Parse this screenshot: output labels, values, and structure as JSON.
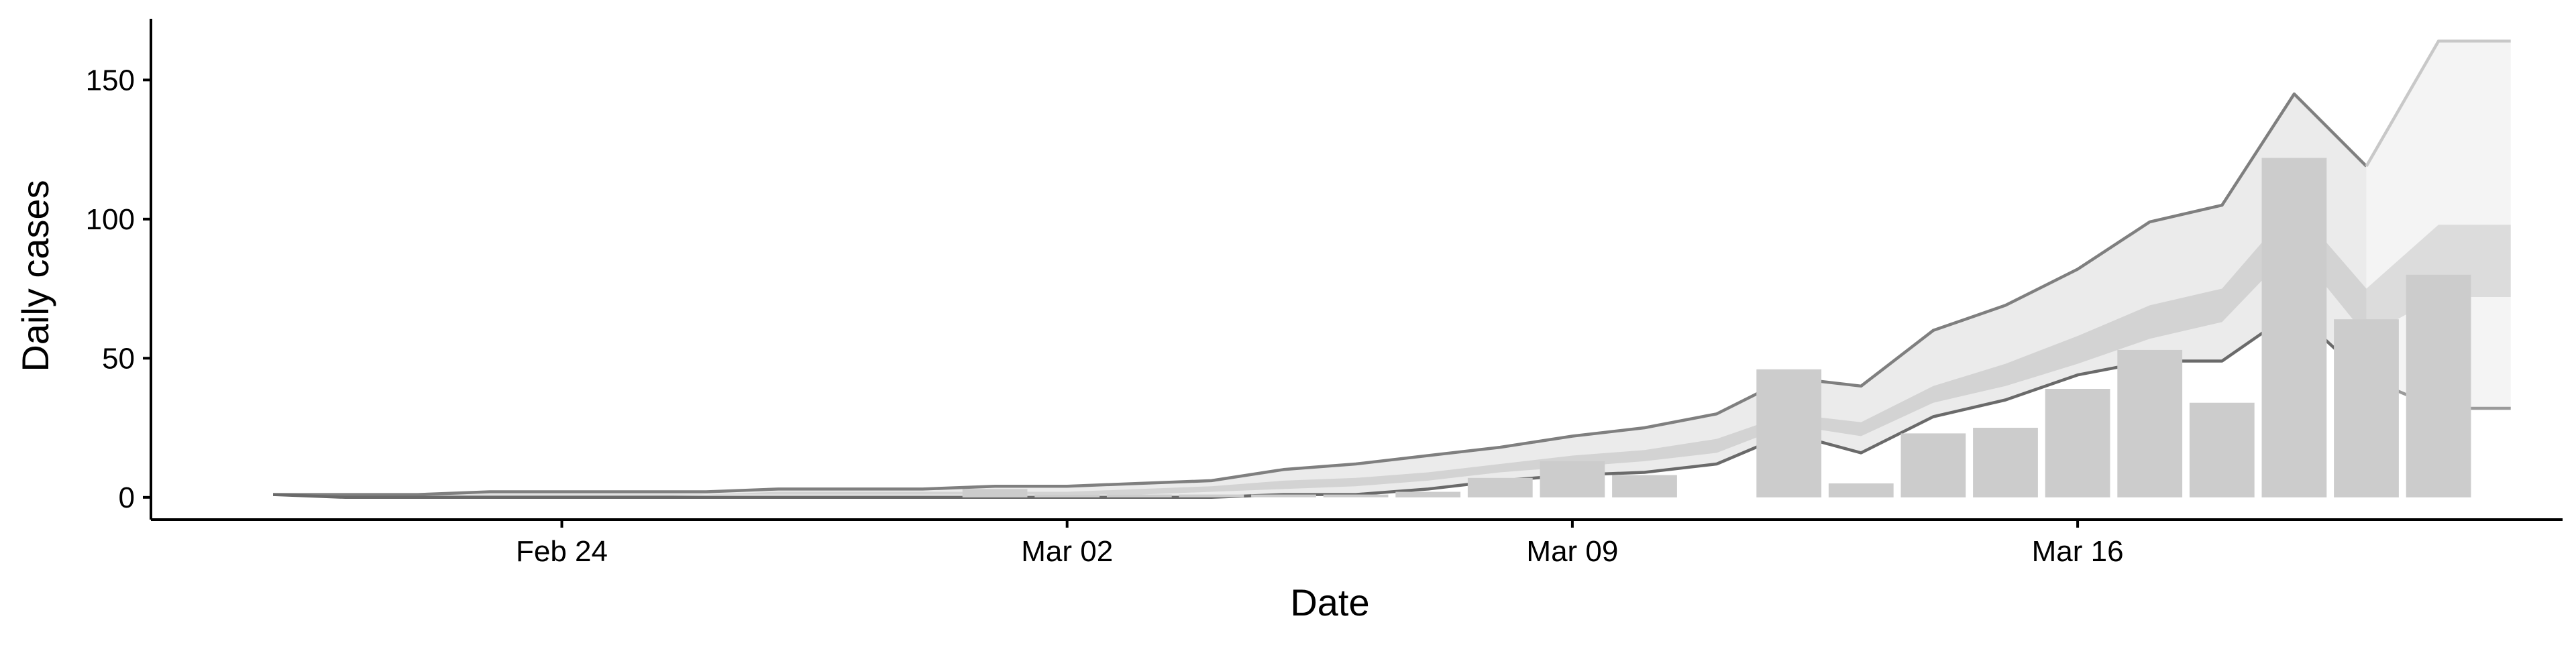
{
  "chart_data": {
    "type": "bar",
    "title": "",
    "xlabel": "Date",
    "ylabel": "Daily cases",
    "ylim": [
      -8,
      172
    ],
    "x_tick_labels": [
      {
        "date": "2020-02-24",
        "label": "Feb 24"
      },
      {
        "date": "2020-03-02",
        "label": "Mar 02"
      },
      {
        "date": "2020-03-09",
        "label": "Mar 09"
      },
      {
        "date": "2020-03-16",
        "label": "Mar 16"
      }
    ],
    "y_ticks": [
      0,
      50,
      100,
      150
    ],
    "grid": false,
    "legend": "none",
    "colors": {
      "bars": "#cccccc",
      "band_outer": "#ebebeb",
      "band_inner": "#d3d3d3",
      "band_outer_forecast": "#f4f4f4",
      "band_inner_forecast": "#dcdcdc",
      "line_upper": "#7f7f7f",
      "line_lower": "#6a6a6a",
      "line_upper_forecast": "#c8c8c8",
      "line_lower_forecast": "#9a9a9a",
      "axis": "#000000"
    },
    "observed_cases": {
      "dates": [
        "2020-03-01",
        "2020-03-02",
        "2020-03-03",
        "2020-03-04",
        "2020-03-05",
        "2020-03-06",
        "2020-03-07",
        "2020-03-08",
        "2020-03-09",
        "2020-03-10",
        "2020-03-11",
        "2020-03-12",
        "2020-03-13",
        "2020-03-14",
        "2020-03-15",
        "2020-03-16",
        "2020-03-17",
        "2020-03-18",
        "2020-03-19",
        "2020-03-20",
        "2020-03-21",
        "2020-03-22"
      ],
      "values": [
        3,
        1,
        1,
        1,
        1,
        1,
        2,
        7,
        13,
        8,
        0,
        46,
        5,
        23,
        25,
        39,
        53,
        34,
        122,
        64,
        80,
        0
      ]
    },
    "forecast_start": "2020-03-21",
    "ribbons": {
      "dates": [
        "2020-02-20",
        "2020-02-21",
        "2020-02-22",
        "2020-02-23",
        "2020-02-24",
        "2020-02-25",
        "2020-02-26",
        "2020-02-27",
        "2020-02-28",
        "2020-02-29",
        "2020-03-01",
        "2020-03-02",
        "2020-03-03",
        "2020-03-04",
        "2020-03-05",
        "2020-03-06",
        "2020-03-07",
        "2020-03-08",
        "2020-03-09",
        "2020-03-10",
        "2020-03-11",
        "2020-03-12",
        "2020-03-13",
        "2020-03-14",
        "2020-03-15",
        "2020-03-16",
        "2020-03-17",
        "2020-03-18",
        "2020-03-19",
        "2020-03-20",
        "2020-03-21",
        "2020-03-22"
      ],
      "upper_90": [
        1,
        1,
        1,
        2,
        2,
        2,
        2,
        3,
        3,
        3,
        4,
        4,
        5,
        6,
        10,
        12,
        15,
        18,
        22,
        25,
        30,
        43,
        40,
        60,
        69,
        82,
        99,
        105,
        145,
        119,
        164,
        164
      ],
      "upper_50": [
        1,
        1,
        1,
        1,
        1,
        1,
        1,
        2,
        2,
        2,
        2,
        2,
        3,
        4,
        6,
        7,
        9,
        12,
        15,
        17,
        21,
        30,
        27,
        40,
        48,
        58,
        69,
        75,
        105,
        75,
        98,
        98
      ],
      "lower_50": [
        1,
        0,
        0,
        0,
        0,
        0,
        1,
        1,
        1,
        1,
        1,
        1,
        1,
        2,
        3,
        4,
        6,
        9,
        11,
        13,
        16,
        26,
        22,
        34,
        40,
        48,
        57,
        63,
        90,
        58,
        72,
        72
      ],
      "lower_90": [
        1,
        0,
        0,
        0,
        0,
        0,
        0,
        0,
        0,
        0,
        0,
        0,
        0,
        0,
        1,
        1,
        3,
        6,
        8,
        9,
        12,
        23,
        16,
        29,
        35,
        44,
        49,
        49,
        67,
        43,
        32,
        32
      ]
    }
  }
}
